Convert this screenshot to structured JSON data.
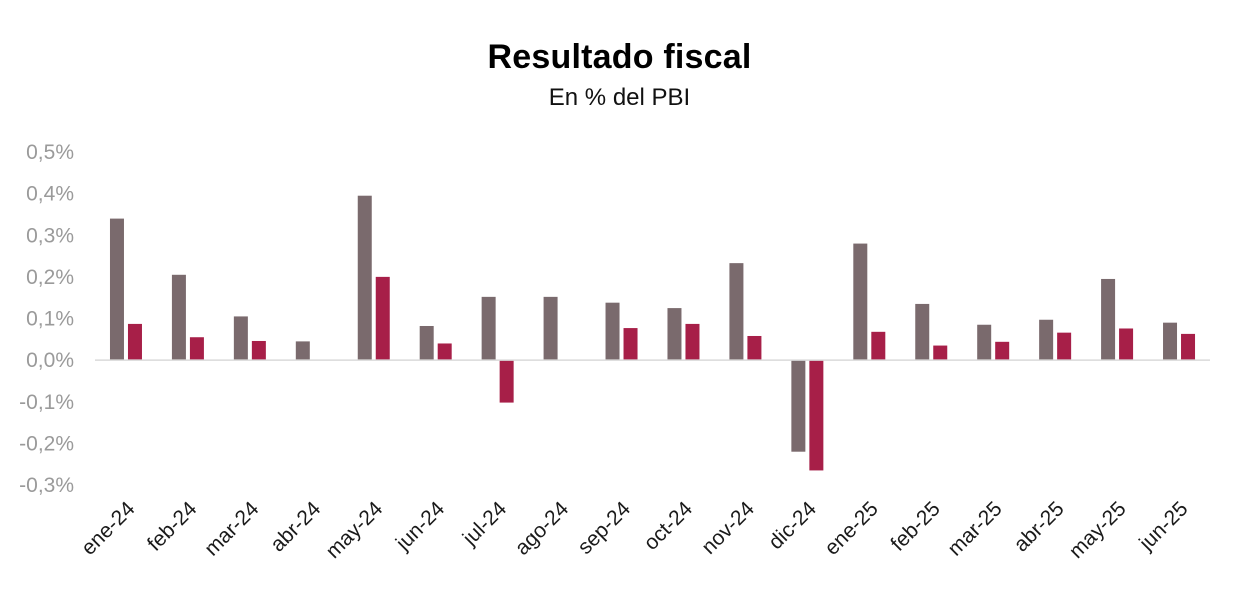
{
  "chart_data": {
    "type": "bar",
    "title": "Resultado fiscal",
    "subtitle": "En % del PBI",
    "categories": [
      "ene-24",
      "feb-24",
      "mar-24",
      "abr-24",
      "may-24",
      "jun-24",
      "jul-24",
      "ago-24",
      "sep-24",
      "oct-24",
      "nov-24",
      "dic-24",
      "ene-25",
      "feb-25",
      "mar-25",
      "abr-25",
      "may-25",
      "jun-25"
    ],
    "series": [
      {
        "color": "#7a6a6d",
        "values": [
          0.34,
          0.205,
          0.105,
          0.045,
          0.395,
          0.082,
          0.152,
          0.152,
          0.138,
          0.125,
          0.233,
          -0.22,
          0.28,
          0.135,
          0.085,
          0.097,
          0.195,
          0.09
        ]
      },
      {
        "color": "#a71f48",
        "values": [
          0.087,
          0.055,
          0.046,
          0.0,
          0.2,
          0.04,
          -0.102,
          0.0,
          0.077,
          0.087,
          0.058,
          -0.265,
          0.068,
          0.035,
          0.044,
          0.066,
          0.076,
          0.063
        ]
      }
    ],
    "ylim": [
      -0.3,
      0.5
    ],
    "yticks": [
      "0,5%",
      "0,4%",
      "0,3%",
      "0,2%",
      "0,1%",
      "0,0%",
      "-0,1%",
      "-0,2%",
      "-0,3%"
    ],
    "ytick_values": [
      0.5,
      0.4,
      0.3,
      0.2,
      0.1,
      0.0,
      -0.1,
      -0.2,
      -0.3
    ],
    "grid": false,
    "legend": "none"
  }
}
